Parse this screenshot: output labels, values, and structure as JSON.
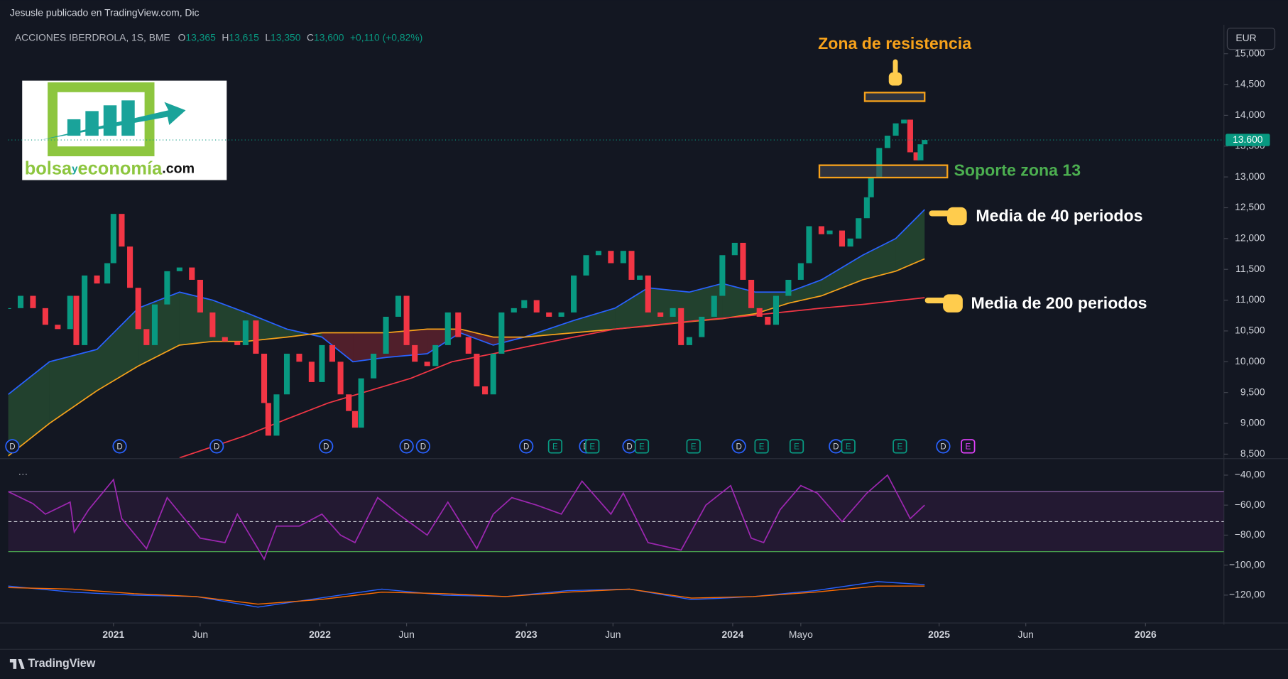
{
  "chart_data": {
    "type": "candlestick",
    "header": "Jesusle publicado en TradingView.com, Dic",
    "symbol": "ACCIONES IBERDROLA, 1S, BME",
    "ohlc": [
      {
        "key": "O",
        "value": "13,365"
      },
      {
        "key": "H",
        "value": "13,615"
      },
      {
        "key": "L",
        "value": "13,350"
      },
      {
        "key": "C",
        "value": "13,600"
      }
    ],
    "change": "+0,110 (+0,82%)",
    "currency": "EUR",
    "last_price": {
      "value": 13600,
      "label": "13.600"
    },
    "up_color": "#089981",
    "down_color": "#f23645",
    "grid": false,
    "xlim": [
      2020.49,
      2026.38
    ],
    "xticks": [
      2021,
      {
        "value": 2021.42,
        "label": "Jun"
      },
      2022,
      {
        "value": 2022.42,
        "label": "Jun"
      },
      2023,
      {
        "value": 2023.42,
        "label": "Jun"
      },
      2024,
      {
        "value": 2024.33,
        "label": "Mayo"
      },
      2025,
      {
        "value": 2025.42,
        "label": "Jun"
      },
      2026
    ],
    "ylim": [
      8440,
      15470
    ],
    "yticks": [
      {
        "value": 8500,
        "label": "8,500"
      },
      {
        "value": 9000,
        "label": "9,000"
      },
      {
        "value": 9500,
        "label": "9,500"
      },
      {
        "value": 10000,
        "label": "10,000"
      },
      {
        "value": 10500,
        "label": "10,500"
      },
      {
        "value": 11000,
        "label": "11,000"
      },
      {
        "value": 11500,
        "label": "11,500"
      },
      {
        "value": 12000,
        "label": "12,000"
      },
      {
        "value": 12500,
        "label": "12,500"
      },
      {
        "value": 13000,
        "label": "13,000"
      },
      {
        "value": 13500,
        "label": "13,500"
      },
      {
        "value": 14000,
        "label": "14,000"
      },
      {
        "value": 14500,
        "label": "14,500"
      },
      {
        "value": 15000,
        "label": "15,000"
      }
    ],
    "x": [
      2020.49,
      2020.55,
      2020.61,
      2020.67,
      2020.73,
      2020.79,
      2020.82,
      2020.86,
      2020.92,
      2020.97,
      2021.0,
      2021.04,
      2021.08,
      2021.12,
      2021.16,
      2021.2,
      2021.26,
      2021.32,
      2021.38,
      2021.42,
      2021.48,
      2021.54,
      2021.6,
      2021.64,
      2021.69,
      2021.73,
      2021.75,
      2021.79,
      2021.84,
      2021.9,
      2021.96,
      2022.01,
      2022.06,
      2022.1,
      2022.14,
      2022.17,
      2022.2,
      2022.26,
      2022.32,
      2022.38,
      2022.42,
      2022.46,
      2022.52,
      2022.56,
      2022.62,
      2022.67,
      2022.72,
      2022.76,
      2022.8,
      2022.84,
      2022.88,
      2022.94,
      2022.99,
      2023.05,
      2023.11,
      2023.17,
      2023.23,
      2023.29,
      2023.35,
      2023.41,
      2023.47,
      2023.51,
      2023.55,
      2023.59,
      2023.65,
      2023.71,
      2023.75,
      2023.79,
      2023.85,
      2023.91,
      2023.95,
      2024.01,
      2024.05,
      2024.09,
      2024.13,
      2024.17,
      2024.21,
      2024.27,
      2024.33,
      2024.37,
      2024.43,
      2024.47,
      2024.53,
      2024.57,
      2024.61,
      2024.65,
      2024.67,
      2024.71,
      2024.75,
      2024.79,
      2024.83,
      2024.86,
      2024.89,
      2024.91,
      2024.93
    ],
    "closes": [
      10870,
      11070,
      10870,
      10600,
      10530,
      11070,
      10270,
      11400,
      11270,
      11600,
      12400,
      11870,
      11200,
      10530,
      10270,
      10930,
      11470,
      11530,
      11330,
      10800,
      10400,
      10330,
      10270,
      10670,
      10130,
      9330,
      8800,
      9470,
      10130,
      10000,
      9670,
      10270,
      10000,
      9470,
      9200,
      8930,
      9730,
      10130,
      10730,
      11070,
      10270,
      10000,
      9930,
      10270,
      10800,
      10400,
      10130,
      9600,
      9470,
      10130,
      10800,
      10870,
      11000,
      10800,
      10730,
      10800,
      11400,
      11730,
      11800,
      11600,
      11800,
      11330,
      11400,
      10800,
      10730,
      10870,
      10270,
      10400,
      10730,
      11070,
      11730,
      11930,
      11330,
      10870,
      10730,
      10600,
      11070,
      11330,
      11600,
      12200,
      12070,
      12130,
      11870,
      12000,
      12330,
      12670,
      13000,
      13470,
      13670,
      13870,
      13930,
      13400,
      13270,
      13530,
      13600
    ],
    "averages": {
      "x": [
        2020.49,
        2020.69,
        2020.92,
        2021.12,
        2021.32,
        2021.48,
        2021.64,
        2021.84,
        2022.01,
        2022.16,
        2022.32,
        2022.52,
        2022.68,
        2022.84,
        2022.99,
        2023.23,
        2023.43,
        2023.59,
        2023.79,
        2023.95,
        2024.11,
        2024.27,
        2024.43,
        2024.63,
        2024.79,
        2024.93
      ],
      "series": [
        {
          "color": "#2962ff",
          "values": [
            9470,
            10000,
            10200,
            10870,
            11130,
            11000,
            10800,
            10530,
            10400,
            10000,
            10070,
            10130,
            10470,
            10270,
            10400,
            10670,
            10870,
            11200,
            11130,
            11270,
            11130,
            11130,
            11330,
            11730,
            12000,
            12470
          ]
        },
        {
          "color": "#f7a21b",
          "values": [
            8470,
            9000,
            9530,
            9930,
            10270,
            10330,
            10330,
            10400,
            10470,
            10470,
            10470,
            10530,
            10530,
            10400,
            10400,
            10470,
            10530,
            10580,
            10650,
            10700,
            10780,
            10950,
            11070,
            11330,
            11470,
            11670
          ]
        }
      ],
      "fill_up": "#4caf50",
      "fill_down": "#f23645"
    },
    "long_average": {
      "color": "#f23645",
      "x": [
        2021.32,
        2021.64,
        2021.84,
        2022.04,
        2022.24,
        2022.44,
        2022.64,
        2022.84,
        2023.04,
        2023.23,
        2023.43,
        2023.63,
        2023.83,
        2024.03,
        2024.23,
        2024.43,
        2024.63,
        2024.93
      ],
      "values": [
        8440,
        8800,
        9070,
        9330,
        9530,
        9730,
        10000,
        10130,
        10270,
        10400,
        10530,
        10600,
        10670,
        10730,
        10800,
        10870,
        10930,
        11040
      ]
    },
    "annotations": {
      "ma40": "Media de 40 periodos",
      "ma200": "Media de 200 periodos"
    },
    "zones": [
      {
        "label": "Zona de resistencia",
        "color": "#f7a21b",
        "x": [
          2024.64,
          2024.93
        ],
        "y": [
          14230,
          14370
        ]
      },
      {
        "label": "Soporte zona 13",
        "color": "#4caf50",
        "x": [
          2024.42,
          2025.04
        ],
        "y": [
          12990,
          13190
        ]
      }
    ],
    "events": {
      "dividend_label": "D",
      "dividends": [
        2020.51,
        2021.03,
        2021.5,
        2022.03,
        2022.42,
        2022.5,
        2023.0,
        2023.29,
        2023.5,
        2024.03,
        2024.5,
        2025.02
      ],
      "earnings_label": "E",
      "earnings": [
        2023.14,
        2023.32,
        2023.56,
        2023.81,
        2024.14,
        2024.31,
        2024.56,
        2024.81,
        2025.14
      ]
    },
    "lower": {
      "menu": "···",
      "ylim": [
        -135.3,
        -30.1
      ],
      "yticks": [
        {
          "value": -40,
          "label": "−40,00"
        },
        {
          "value": -60,
          "label": "−60,00"
        },
        {
          "value": -80,
          "label": "−80,00"
        },
        {
          "value": -100,
          "label": "−100,00"
        },
        {
          "value": -120,
          "label": "−120,00"
        }
      ],
      "rsi": {
        "color": "#9c27b0",
        "bands": [
          -51,
          -71,
          -91
        ],
        "x": [
          2020.49,
          2020.61,
          2020.67,
          2020.79,
          2020.81,
          2020.88,
          2021.0,
          2021.04,
          2021.16,
          2021.26,
          2021.42,
          2021.54,
          2021.6,
          2021.73,
          2021.79,
          2021.9,
          2022.01,
          2022.1,
          2022.17,
          2022.28,
          2022.38,
          2022.46,
          2022.52,
          2022.62,
          2022.76,
          2022.84,
          2022.93,
          2023.05,
          2023.17,
          2023.27,
          2023.41,
          2023.47,
          2023.59,
          2023.75,
          2023.87,
          2023.99,
          2024.09,
          2024.15,
          2024.23,
          2024.33,
          2024.41,
          2024.53,
          2024.65,
          2024.75,
          2024.86,
          2024.93
        ],
        "values": [
          -51,
          -59,
          -66,
          -58,
          -78,
          -63,
          -43,
          -69,
          -89,
          -55,
          -82,
          -85,
          -66,
          -96,
          -74,
          -74,
          -66,
          -80,
          -85,
          -55,
          -66,
          -74,
          -80,
          -58,
          -89,
          -66,
          -55,
          -60,
          -66,
          -44,
          -66,
          -52,
          -85,
          -90,
          -60,
          -47,
          -82,
          -85,
          -63,
          -47,
          -52,
          -71,
          -52,
          -40,
          -69,
          -60
        ]
      },
      "macd": {
        "x": [
          2020.49,
          2020.8,
          2021.1,
          2021.4,
          2021.7,
          2022.0,
          2022.3,
          2022.6,
          2022.9,
          2023.2,
          2023.5,
          2023.8,
          2024.1,
          2024.4,
          2024.7,
          2024.93
        ],
        "series": [
          {
            "color": "#2962ff",
            "values": [
              -114,
              -118,
              -120,
              -121,
              -128,
              -122,
              -116,
              -120,
              -121,
              -117,
              -116,
              -123,
              -121,
              -117,
              -111,
              -113
            ]
          },
          {
            "color": "#ff6d00",
            "values": [
              -115,
              -116,
              -119,
              -121,
              -126,
              -123,
              -118,
              -119,
              -121,
              -118,
              -116,
              -122,
              -121,
              -118,
              -114,
              -114
            ]
          }
        ]
      }
    },
    "logo": {
      "parts": [
        "bolsa",
        "y",
        "economía",
        ".com"
      ]
    },
    "footer": "TradingView"
  }
}
